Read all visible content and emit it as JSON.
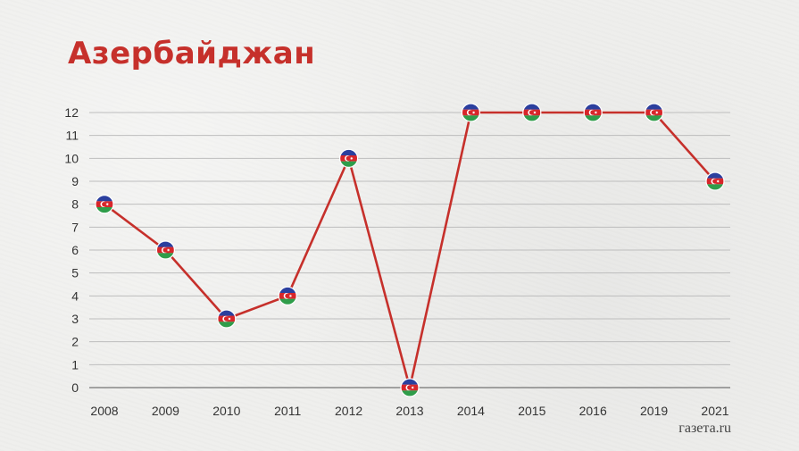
{
  "title": "Азербайджан",
  "watermark": "газета.ru",
  "colors": {
    "line": "#c6302b",
    "title": "#c6302b",
    "grid": "#bdbdbd",
    "flag_blue": "#2b3f9e",
    "flag_red": "#d7262a",
    "flag_green": "#2f9d4a"
  },
  "icons": {
    "marker": "azerbaijan-flag-icon"
  },
  "chart_data": {
    "type": "line",
    "title": "Азербайджан",
    "xlabel": "",
    "ylabel": "",
    "categories": [
      "2008",
      "2009",
      "2010",
      "2011",
      "2012",
      "2013",
      "2014",
      "2015",
      "2016",
      "2019",
      "2021"
    ],
    "series": [
      {
        "values": [
          8,
          6,
          3,
          4,
          10,
          0,
          12,
          12,
          12,
          12,
          9
        ]
      }
    ],
    "y_ticks": [
      "0",
      "1",
      "2",
      "3",
      "4",
      "5",
      "6",
      "7",
      "8",
      "9",
      "10",
      "11",
      "12"
    ],
    "ylim": [
      0,
      12
    ],
    "grid": true,
    "marker": "azerbaijan-flag"
  }
}
